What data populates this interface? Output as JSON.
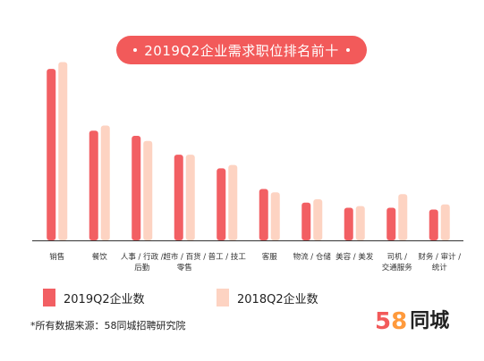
{
  "title": "2019Q2企业需求职位排名前十",
  "chart_data": {
    "type": "bar",
    "title": "2019Q2企业需求职位排名前十",
    "categories": [
      "销售",
      "餐饮",
      "人事/行政/后勤",
      "超市/百货/零售",
      "普工/技工",
      "客服",
      "物流/仓储",
      "美容/美发",
      "司机/交通服务",
      "财务/审计/统计"
    ],
    "category_lines": [
      [
        "销售"
      ],
      [
        "餐饮"
      ],
      [
        "人事 / 行政 /",
        "后勤"
      ],
      [
        "超市 / 百货 /",
        "零售"
      ],
      [
        "普工 / 技工"
      ],
      [
        "客服"
      ],
      [
        "物流 / 仓储"
      ],
      [
        "美容 / 美发"
      ],
      [
        "司机 /",
        "交通服务"
      ],
      [
        "财务 / 审计 /",
        "统计"
      ]
    ],
    "series": [
      {
        "name": "2019Q2企业数",
        "color": "#f25f63",
        "values": [
          100,
          64,
          61,
          50,
          42,
          30,
          22,
          19,
          19,
          18
        ]
      },
      {
        "name": "2018Q2企业数",
        "color": "#fdd3c2",
        "values": [
          104,
          67,
          58,
          50,
          44,
          28,
          24,
          20,
          27,
          21
        ]
      }
    ],
    "ylim": [
      0,
      110
    ],
    "grid": false,
    "legend": "bottom-left"
  },
  "legend": {
    "items": [
      {
        "label": "2019Q2企业数",
        "color": "#f25f63"
      },
      {
        "label": "2018Q2企业数",
        "color": "#fdd3c2"
      }
    ]
  },
  "source": "*所有数据来源：58同城招聘研究院",
  "brand": {
    "digit_5": "5",
    "digit_8": "8",
    "name": "同城"
  }
}
